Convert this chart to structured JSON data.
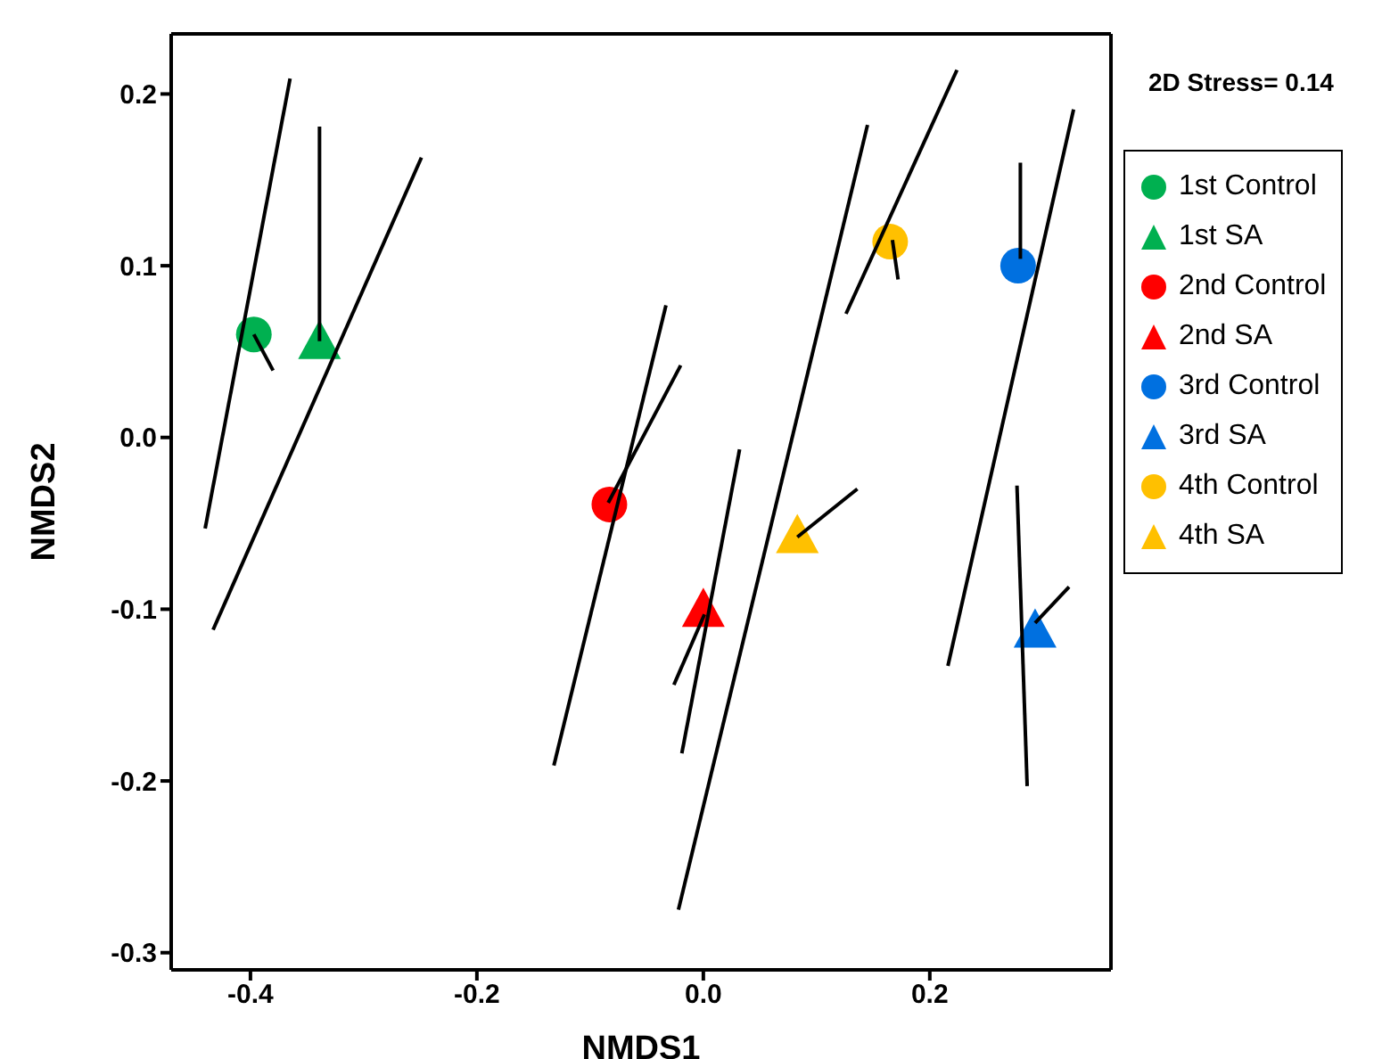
{
  "chart_data": {
    "type": "scatter",
    "xlabel": "NMDS1",
    "ylabel": "NMDS2",
    "annotations": [
      "2D Stress= 0.14"
    ],
    "xlim": [
      -0.47,
      0.36
    ],
    "xticks": [
      {
        "value": -0.4,
        "label": "-0.4"
      },
      {
        "value": -0.2,
        "label": "-0.2"
      },
      {
        "value": 0,
        "label": "0.0"
      },
      {
        "value": 0.2,
        "label": "0.2"
      }
    ],
    "ylim": [
      -0.31,
      0.235
    ],
    "yticks": [
      {
        "value": -0.3,
        "label": "-0.3"
      },
      {
        "value": -0.2,
        "label": "-0.2"
      },
      {
        "value": -0.1,
        "label": "-0.1"
      },
      {
        "value": 0,
        "label": "0.0"
      },
      {
        "value": 0.1,
        "label": "0.1"
      },
      {
        "value": 0.2,
        "label": "0.2"
      }
    ],
    "grid": false,
    "legend": "right",
    "line_style": "solid",
    "series": [
      {
        "type": "line",
        "color": "#000000",
        "marker": "none",
        "x": [
          -0.365,
          -0.44
        ],
        "values": [
          0.209,
          -0.053
        ]
      },
      {
        "type": "line",
        "color": "#000000",
        "marker": "none",
        "x": [
          -0.397,
          -0.38
        ],
        "values": [
          0.06,
          0.039
        ]
      },
      {
        "type": "line",
        "color": "#000000",
        "marker": "none",
        "x": [
          -0.339,
          -0.339
        ],
        "values": [
          0.181,
          0.056
        ]
      },
      {
        "type": "line",
        "color": "#000000",
        "marker": "none",
        "x": [
          -0.249,
          -0.433
        ],
        "values": [
          0.163,
          -0.112
        ]
      },
      {
        "type": "line",
        "color": "#000000",
        "marker": "none",
        "x": [
          -0.033,
          -0.132
        ],
        "values": [
          0.077,
          -0.191
        ]
      },
      {
        "type": "line",
        "color": "#000000",
        "marker": "none",
        "x": [
          -0.02,
          -0.084
        ],
        "values": [
          0.042,
          -0.038
        ]
      },
      {
        "type": "line",
        "color": "#000000",
        "marker": "none",
        "x": [
          0.032,
          -0.019
        ],
        "values": [
          -0.007,
          -0.184
        ]
      },
      {
        "type": "line",
        "color": "#000000",
        "marker": "none",
        "x": [
          0.001,
          -0.026
        ],
        "values": [
          -0.103,
          -0.144
        ]
      },
      {
        "type": "line",
        "color": "#000000",
        "marker": "none",
        "x": [
          0.145,
          -0.022
        ],
        "values": [
          0.182,
          -0.275
        ]
      },
      {
        "type": "line",
        "color": "#000000",
        "marker": "none",
        "x": [
          0.136,
          0.083
        ],
        "values": [
          -0.03,
          -0.058
        ]
      },
      {
        "type": "line",
        "color": "#000000",
        "marker": "none",
        "x": [
          0.224,
          0.126
        ],
        "values": [
          0.214,
          0.072
        ]
      },
      {
        "type": "line",
        "color": "#000000",
        "marker": "none",
        "x": [
          0.167,
          0.172
        ],
        "values": [
          0.115,
          0.092
        ]
      },
      {
        "type": "line",
        "color": "#000000",
        "marker": "none",
        "x": [
          0.327,
          0.216
        ],
        "values": [
          0.191,
          -0.133
        ]
      },
      {
        "type": "line",
        "color": "#000000",
        "marker": "none",
        "x": [
          0.28,
          0.28
        ],
        "values": [
          0.16,
          0.104
        ]
      },
      {
        "type": "line",
        "color": "#000000",
        "marker": "none",
        "x": [
          0.277,
          0.286
        ],
        "values": [
          -0.028,
          -0.203
        ]
      },
      {
        "type": "line",
        "color": "#000000",
        "marker": "none",
        "x": [
          0.293,
          0.323
        ],
        "values": [
          -0.108,
          -0.087
        ]
      },
      {
        "name": "1st Control",
        "color": "#00b050",
        "marker": "circle",
        "x": [
          -0.397
        ],
        "values": [
          0.06
        ]
      },
      {
        "name": "1st SA",
        "color": "#00b050",
        "marker": "triangle",
        "x": [
          -0.339
        ],
        "values": [
          0.055
        ]
      },
      {
        "name": "2nd Control",
        "color": "#ff0000",
        "marker": "circle",
        "x": [
          -0.083
        ],
        "values": [
          -0.039
        ]
      },
      {
        "name": "2nd SA",
        "color": "#ff0000",
        "marker": "triangle",
        "x": [
          0
        ],
        "values": [
          -0.101
        ]
      },
      {
        "name": "3rd Control",
        "color": "#0070e0",
        "marker": "circle",
        "x": [
          0.278
        ],
        "values": [
          0.1
        ]
      },
      {
        "name": "3rd SA",
        "color": "#0070e0",
        "marker": "triangle",
        "x": [
          0.293
        ],
        "values": [
          -0.113
        ]
      },
      {
        "name": "4th Control",
        "color": "#ffc000",
        "marker": "circle",
        "x": [
          0.165
        ],
        "values": [
          0.114
        ]
      },
      {
        "name": "4th SA",
        "color": "#ffc000",
        "marker": "triangle",
        "x": [
          0.083
        ],
        "values": [
          -0.058
        ]
      }
    ]
  }
}
